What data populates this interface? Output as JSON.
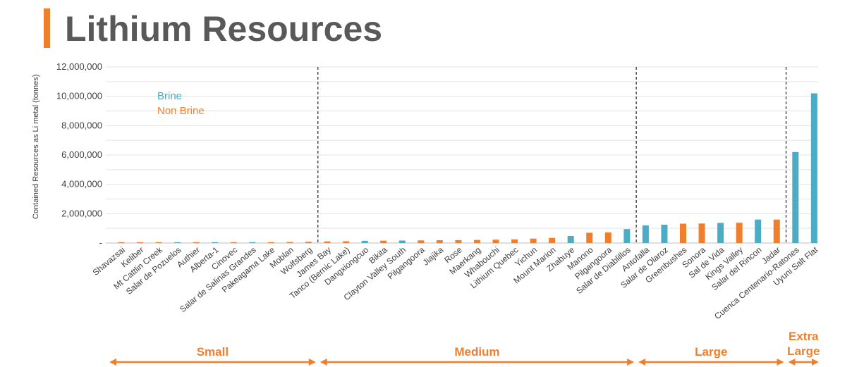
{
  "title": "Lithium Resources",
  "colors": {
    "brine": "#4BACC6",
    "nonbrine": "#F07F2D",
    "title": "#595959",
    "accent": "#F07F2D"
  },
  "chart_data": {
    "type": "bar",
    "ylabel": "Contained Resources as Li metal (tonnes)",
    "ylim": [
      0,
      12000000
    ],
    "yticks": [
      "-",
      "2,000,000",
      "4,000,000",
      "6,000,000",
      "8,000,000",
      "10,000,000",
      "12,000,000"
    ],
    "grid": true,
    "legend": [
      {
        "name": "Brine",
        "key": "brine"
      },
      {
        "name": "Non Brine",
        "key": "nonbrine"
      }
    ],
    "categories": [
      "Shavazsai",
      "Keliber",
      "Mt Cattlin Creek",
      "Salar de Pozuelos",
      "Authier",
      "Alberta-1",
      "Cinovec",
      "Salar de Salinas Grandes",
      "Pakeagama Lake",
      "Moblan",
      "Wolfsberg",
      "James Bay",
      "Tanco (Bernic Lake)",
      "Dangxiongcuo",
      "Bikita",
      "Clayton Valley South",
      "Pilgangoora",
      "Jiajika",
      "Rose",
      "Maerkang",
      "Whabouchi",
      "Lithium Quebec",
      "Yichun",
      "Mount Marion",
      "Zhabuye",
      "Manono",
      "Pilgangoora",
      "Salar de Diablillos",
      "Antofalla",
      "Salar de Olaroz",
      "Greenbushes",
      "Sonora",
      "Sal de Vida",
      "Kings Valley",
      "Salar del Rincon",
      "Jadar",
      "Cuenca Centenario-Ratones",
      "Uyuni Salt Flat"
    ],
    "values": [
      20000,
      25000,
      30000,
      35000,
      40000,
      45000,
      50000,
      55000,
      60000,
      70000,
      85000,
      110000,
      120000,
      150000,
      160000,
      170000,
      180000,
      190000,
      200000,
      210000,
      230000,
      250000,
      300000,
      350000,
      480000,
      700000,
      720000,
      950000,
      1200000,
      1250000,
      1320000,
      1330000,
      1370000,
      1380000,
      1600000,
      1600000,
      6200000,
      10200000
    ],
    "brine": [
      false,
      false,
      false,
      true,
      false,
      true,
      false,
      true,
      false,
      false,
      false,
      false,
      false,
      true,
      false,
      true,
      false,
      false,
      false,
      false,
      false,
      false,
      false,
      false,
      true,
      false,
      false,
      true,
      true,
      true,
      false,
      false,
      true,
      false,
      true,
      false,
      true,
      true
    ],
    "groups": [
      {
        "label": "Small",
        "end_index": 10
      },
      {
        "label": "Medium",
        "end_index": 27
      },
      {
        "label": "Large",
        "end_index": 35
      },
      {
        "label": "Extra Large",
        "end_index": 37
      }
    ]
  }
}
